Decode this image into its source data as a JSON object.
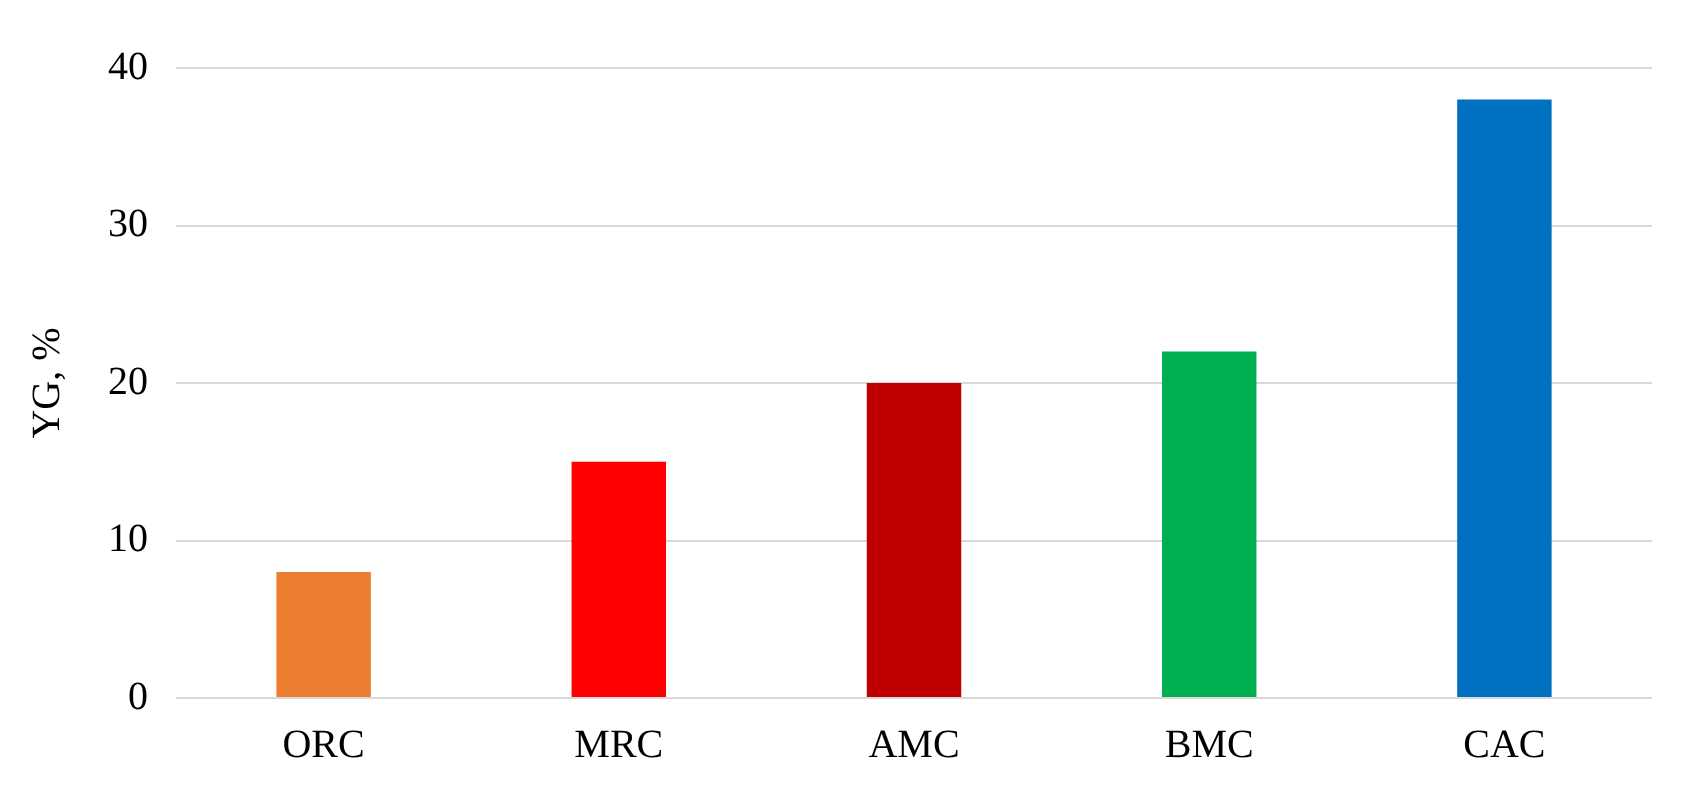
{
  "chart_data": {
    "type": "bar",
    "ylabel": "YG, %",
    "categories": [
      "ORC",
      "MRC",
      "AMC",
      "BMC",
      "CAC"
    ],
    "values": [
      8,
      15,
      20,
      22,
      38
    ],
    "colors": [
      "#ed7d31",
      "#ff0000",
      "#c00000",
      "#00b050",
      "#0070c0"
    ],
    "ylim": [
      0,
      40
    ],
    "yticks": [
      0,
      10,
      20,
      30,
      40
    ],
    "grid": "y",
    "legend": false
  }
}
